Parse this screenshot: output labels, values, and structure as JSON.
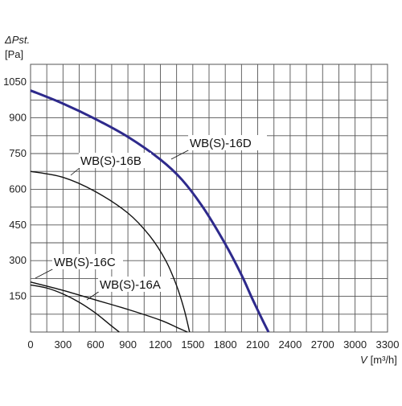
{
  "chart_data": {
    "type": "line",
    "x_axis": {
      "label_var": "V",
      "label_unit": "[m³/h]",
      "ticks": [
        0,
        300,
        600,
        900,
        1200,
        1500,
        1800,
        2100,
        2400,
        2700,
        3000,
        3300
      ],
      "range": [
        0,
        3300
      ]
    },
    "y_axis": {
      "label_var": "ΔPst.",
      "label_unit": "[Pa]",
      "ticks": [
        150,
        300,
        450,
        600,
        750,
        900,
        1050
      ],
      "range": [
        0,
        1125
      ]
    },
    "grid": true,
    "series": [
      {
        "name": "WB(S)-16D",
        "emphasis": true,
        "color": "#2e2a8c",
        "x": [
          0,
          300,
          600,
          900,
          1200,
          1400,
          1600,
          1800,
          1950,
          2050,
          2150,
          2200
        ],
        "y": [
          1015,
          960,
          895,
          820,
          725,
          640,
          520,
          370,
          240,
          140,
          45,
          0
        ]
      },
      {
        "name": "WB(S)-16B",
        "color": "#111111",
        "x": [
          0,
          300,
          600,
          900,
          1100,
          1250,
          1350,
          1420,
          1470
        ],
        "y": [
          675,
          650,
          590,
          500,
          405,
          300,
          195,
          95,
          0
        ]
      },
      {
        "name": "WB(S)-16A",
        "color": "#111111",
        "x": [
          0,
          300,
          600,
          900,
          1200,
          1350,
          1450
        ],
        "y": [
          210,
          175,
          135,
          95,
          50,
          20,
          0
        ]
      },
      {
        "name": "WB(S)-16C",
        "color": "#111111",
        "x": [
          0,
          150,
          300,
          450,
          600,
          750,
          820
        ],
        "y": [
          198,
          185,
          160,
          125,
          80,
          25,
          0
        ]
      }
    ]
  }
}
